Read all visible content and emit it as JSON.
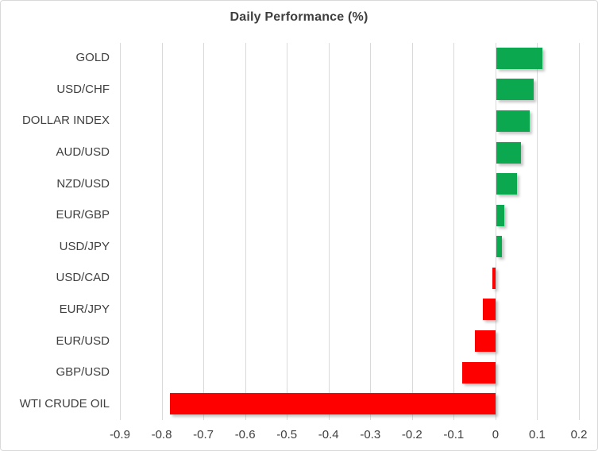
{
  "chart_data": {
    "type": "bar",
    "orientation": "horizontal",
    "title": "Daily Performance (%)",
    "categories": [
      "GOLD",
      "USD/CHF",
      "DOLLAR INDEX",
      "AUD/USD",
      "NZD/USD",
      "EUR/GBP",
      "USD/JPY",
      "USD/CAD",
      "EUR/JPY",
      "EUR/USD",
      "GBP/USD",
      "WTI CRUDE OIL"
    ],
    "values": [
      0.11,
      0.09,
      0.08,
      0.06,
      0.05,
      0.02,
      0.013,
      -0.007,
      -0.03,
      -0.05,
      -0.08,
      -0.78
    ],
    "xlabel": "",
    "ylabel": "",
    "xlim": [
      -0.9,
      0.2
    ],
    "xticks": [
      -0.9,
      -0.8,
      -0.7,
      -0.6,
      -0.5,
      -0.4,
      -0.3,
      -0.2,
      -0.1,
      0,
      0.1,
      0.2
    ],
    "xtick_labels": [
      "-0.9",
      "-0.8",
      "-0.7",
      "-0.6",
      "-0.5",
      "-0.4",
      "-0.3",
      "-0.2",
      "-0.1",
      "0",
      "0.1",
      "0.2"
    ],
    "grid": "vertical",
    "legend": "none",
    "colors": {
      "positive": "#0CA84F",
      "negative": "#FF0000",
      "gridline": "#D9D9D9",
      "title_text": "#3E3E3E",
      "axis_text": "#404040",
      "border": "#D9D9D9",
      "background": "#FFFFFF"
    }
  }
}
